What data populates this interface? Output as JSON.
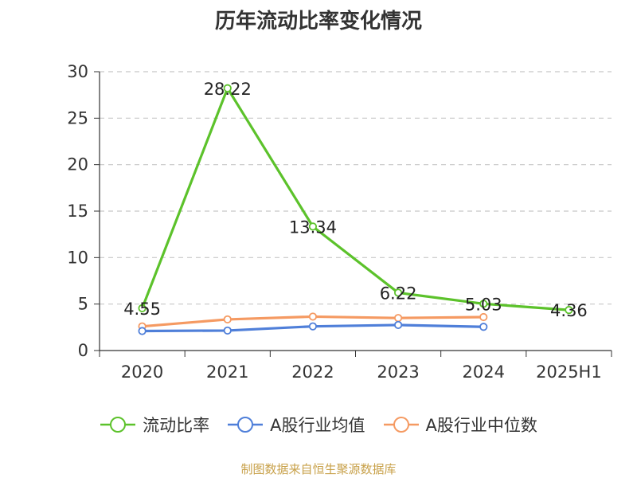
{
  "chart_data": {
    "type": "line",
    "title": "历年流动比率变化情况",
    "categories": [
      "2020",
      "2021",
      "2022",
      "2023",
      "2024",
      "2025H1"
    ],
    "ylim": [
      0,
      30
    ],
    "yticks": [
      0,
      5,
      10,
      15,
      20,
      25,
      30
    ],
    "grid": true,
    "legend_position": "bottom",
    "series": [
      {
        "name": "流动比率",
        "color": "#5cc22b",
        "values": [
          4.55,
          28.22,
          13.34,
          6.22,
          5.03,
          4.36
        ],
        "labels": [
          "4.55",
          "28.22",
          "13.34",
          "6.22",
          "5.03",
          "4.36"
        ]
      },
      {
        "name": "A股行业均值",
        "color": "#4f7fd9",
        "values": [
          2.1,
          2.15,
          2.6,
          2.75,
          2.55,
          null
        ]
      },
      {
        "name": "A股行业中位数",
        "color": "#f59a62",
        "values": [
          2.6,
          3.35,
          3.65,
          3.5,
          3.6,
          null
        ]
      }
    ]
  },
  "source": "制图数据来自恒生聚源数据库"
}
